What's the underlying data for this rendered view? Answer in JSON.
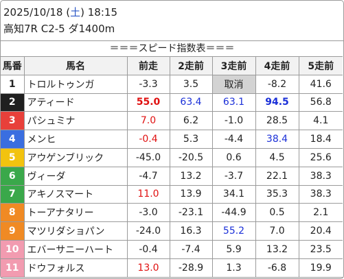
{
  "header": {
    "date": "2025/10/18",
    "dow_open": "(",
    "dow": "土",
    "dow_close": ")",
    "time": "18:15",
    "race": "高知7R C2-5 ダ1400m"
  },
  "banner": "＝＝＝スピード指数表＝＝＝",
  "table": {
    "columns": [
      "馬番",
      "馬名",
      "前走",
      "2走前",
      "3走前",
      "4走前",
      "5走前"
    ],
    "rows": [
      {
        "num": "1",
        "name": "トロルトゥンガ",
        "v": [
          "-3.3",
          "3.5",
          "取消",
          "-8.2",
          "41.6"
        ],
        "num_bg": "#ffffff",
        "num_fg": "#222222",
        "s": [
          "",
          "",
          "c",
          "",
          ""
        ]
      },
      {
        "num": "2",
        "name": "アティード",
        "v": [
          "55.0",
          "63.4",
          "63.1",
          "94.5",
          "56.8"
        ],
        "num_bg": "#1f1f1f",
        "num_fg": "#ffffff",
        "s": [
          "red bold",
          "blue",
          "blue",
          "blue bold",
          ""
        ]
      },
      {
        "num": "3",
        "name": "パシュミナ",
        "v": [
          "7.0",
          "6.2",
          "-1.0",
          "28.5",
          "4.1"
        ],
        "num_bg": "#e8403a",
        "num_fg": "#ffffff",
        "s": [
          "red",
          "",
          "",
          "",
          ""
        ]
      },
      {
        "num": "4",
        "name": "メンヒ",
        "v": [
          "-0.4",
          "5.3",
          "-4.4",
          "38.4",
          "18.4"
        ],
        "num_bg": "#3a6ee0",
        "num_fg": "#ffffff",
        "s": [
          "red",
          "",
          "",
          "blue",
          ""
        ]
      },
      {
        "num": "5",
        "name": "アウゲンブリック",
        "v": [
          "-45.0",
          "-20.5",
          "0.6",
          "4.5",
          "25.6"
        ],
        "num_bg": "#f2c30f",
        "num_fg": "#ffffff",
        "s": [
          "",
          "",
          "",
          "",
          ""
        ]
      },
      {
        "num": "6",
        "name": "ヴィーダ",
        "v": [
          "-4.7",
          "13.2",
          "-3.7",
          "22.1",
          "38.3"
        ],
        "num_bg": "#3aa84a",
        "num_fg": "#ffffff",
        "s": [
          "",
          "",
          "",
          "",
          ""
        ]
      },
      {
        "num": "7",
        "name": "アキノスマート",
        "v": [
          "11.0",
          "13.9",
          "34.1",
          "35.3",
          "38.3"
        ],
        "num_bg": "#3aa84a",
        "num_fg": "#ffffff",
        "s": [
          "red",
          "",
          "",
          "",
          ""
        ]
      },
      {
        "num": "8",
        "name": "トーアナタリー",
        "v": [
          "-3.0",
          "-23.1",
          "-44.9",
          "0.5",
          "2.1"
        ],
        "num_bg": "#f08a24",
        "num_fg": "#ffffff",
        "s": [
          "",
          "",
          "",
          "",
          ""
        ]
      },
      {
        "num": "9",
        "name": "マツリダショパン",
        "v": [
          "-24.0",
          "16.3",
          "55.2",
          "7.0",
          "20.4"
        ],
        "num_bg": "#f08a24",
        "num_fg": "#ffffff",
        "s": [
          "",
          "",
          "blue",
          "",
          ""
        ]
      },
      {
        "num": "10",
        "name": "エバーサニーハート",
        "v": [
          "-0.4",
          "-7.4",
          "5.9",
          "13.2",
          "23.5"
        ],
        "num_bg": "#f29bb0",
        "num_fg": "#ffffff",
        "s": [
          "",
          "",
          "",
          "",
          ""
        ]
      },
      {
        "num": "11",
        "name": "ドウフォルス",
        "v": [
          "13.0",
          "-28.9",
          "1.3",
          "-6.8",
          "19.9"
        ],
        "num_bg": "#f29bb0",
        "num_fg": "#ffffff",
        "s": [
          "red",
          "",
          "",
          "",
          ""
        ]
      }
    ]
  }
}
